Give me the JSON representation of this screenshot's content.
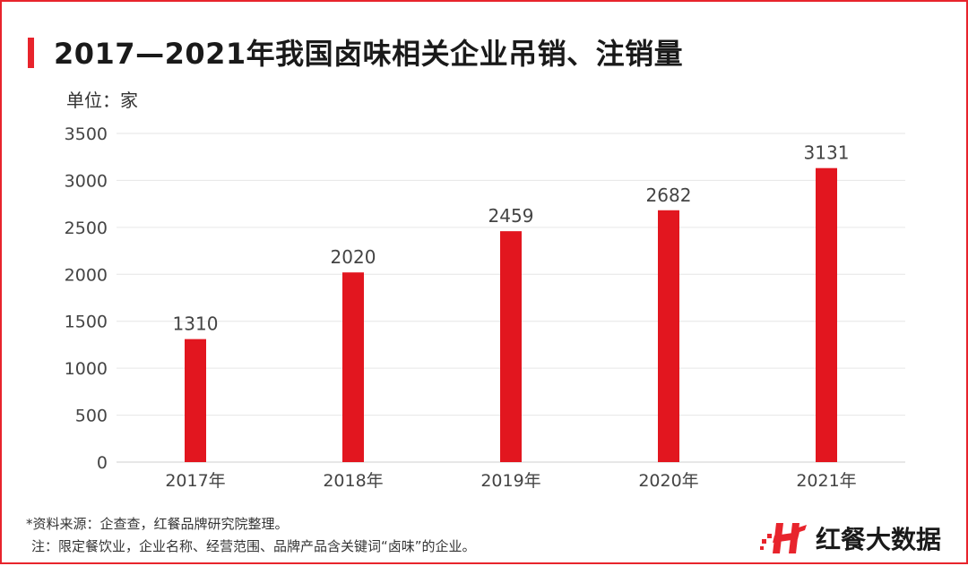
{
  "title": "2017—2021年我国卤味相关企业吊销、注销量",
  "unit_label": "单位：家",
  "source": "*资料来源：企查查，红餐品牌研究院整理。",
  "note": "注：限定餐饮业，企业名称、经营范围、品牌产品含关键词“卤味”的企业。",
  "brand": {
    "name": "红餐大数据",
    "logo_icon": "hongcan-h-logo-icon"
  },
  "colors": {
    "accent": "#e8242c",
    "bar": "#e2161f",
    "grid": "#e6e6e6"
  },
  "chart_data": {
    "type": "bar",
    "categories": [
      "2017年",
      "2018年",
      "2019年",
      "2020年",
      "2021年"
    ],
    "values": [
      1310,
      2020,
      2459,
      2682,
      3131
    ],
    "title": "2017—2021年我国卤味相关企业吊销、注销量",
    "xlabel": "",
    "ylabel": "单位：家",
    "ylim": [
      0,
      3500
    ],
    "yticks": [
      0,
      500,
      1000,
      1500,
      2000,
      2500,
      3000,
      3500
    ],
    "grid": true,
    "legend": "none"
  }
}
